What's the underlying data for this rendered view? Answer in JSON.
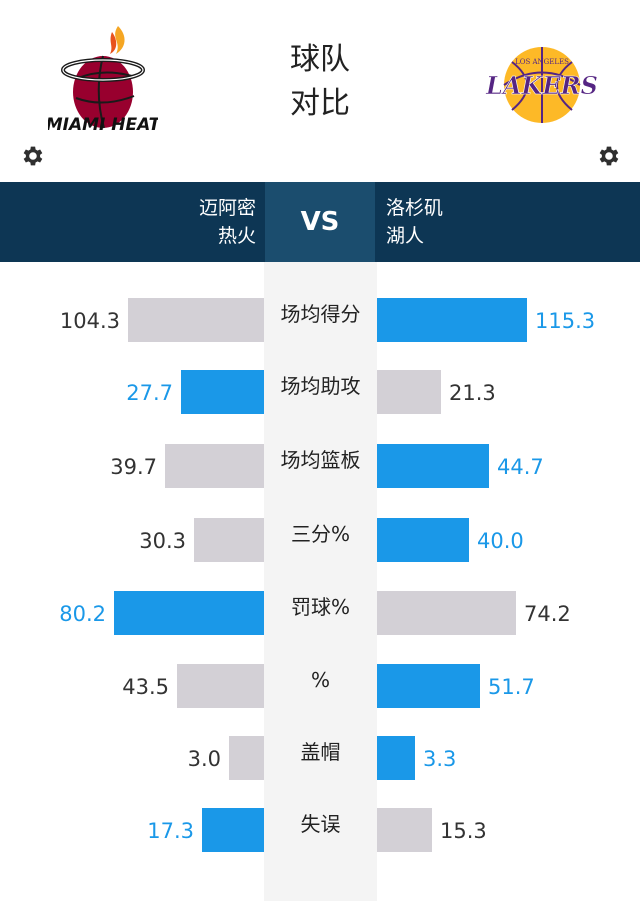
{
  "header": {
    "title_line1": "球队",
    "title_line2": "对比",
    "left_team_logo": "miami-heat-logo",
    "right_team_logo": "lakers-logo",
    "left_logo_text": "MIAMI HEAT",
    "right_logo_text": "LOS ANGELES LAKERS"
  },
  "vs_band": {
    "left_team_line1": "迈阿密",
    "left_team_line2": "热火",
    "vs_label": "VS",
    "right_team_line1": "洛杉矶",
    "right_team_line2": "湖人"
  },
  "colors": {
    "highlight": "#1a98e8",
    "muted_bar": "#d3d0d6",
    "muted_text": "#333333",
    "band_bg": "#0d3654",
    "vs_bg": "#1b4d6e"
  },
  "stats": [
    {
      "label": "场均得分",
      "left": "104.3",
      "right": "115.3",
      "left_value": 104.3,
      "right_value": 115.3,
      "winner": "right",
      "scale_max": 115.3
    },
    {
      "label": "场均助攻",
      "left": "27.7",
      "right": "21.3",
      "left_value": 27.7,
      "right_value": 21.3,
      "winner": "left",
      "scale_max": 50
    },
    {
      "label": "场均篮板",
      "left": "39.7",
      "right": "44.7",
      "left_value": 39.7,
      "right_value": 44.7,
      "winner": "right",
      "scale_max": 60
    },
    {
      "label": "三分%",
      "left": "30.3",
      "right": "40.0",
      "left_value": 30.3,
      "right_value": 40.0,
      "winner": "right",
      "scale_max": 65
    },
    {
      "label": "罚球%",
      "left": "80.2",
      "right": "74.2",
      "left_value": 80.2,
      "right_value": 74.2,
      "winner": "left",
      "scale_max": 80.2
    },
    {
      "label": "%",
      "left": "43.5",
      "right": "51.7",
      "left_value": 43.5,
      "right_value": 51.7,
      "winner": "right",
      "scale_max": 75
    },
    {
      "label": "盖帽",
      "left": "3.0",
      "right": "3.3",
      "left_value": 3.0,
      "right_value": 3.3,
      "winner": "right",
      "scale_max": 13
    },
    {
      "label": "失误",
      "left": "17.3",
      "right": "15.3",
      "left_value": 17.3,
      "right_value": 15.3,
      "winner": "left",
      "scale_max": 42
    }
  ]
}
